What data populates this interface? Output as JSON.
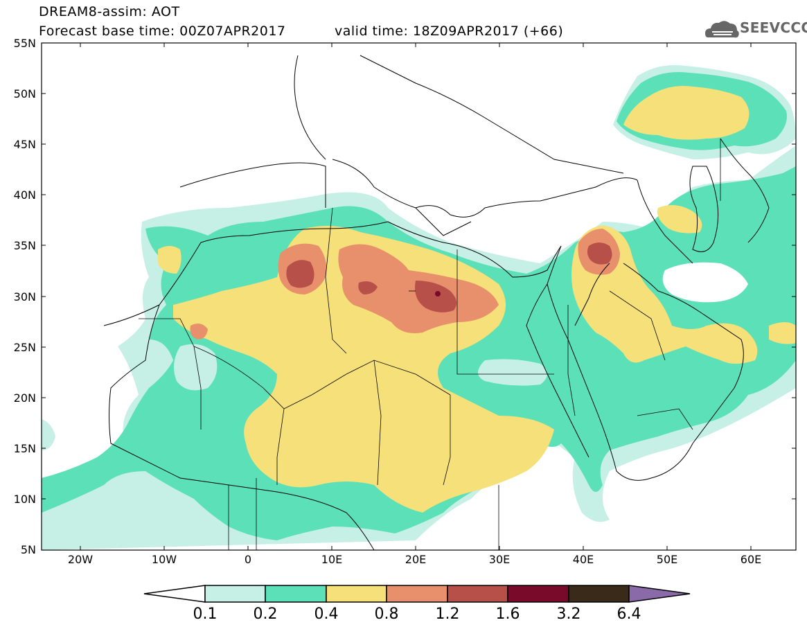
{
  "header": {
    "title": "DREAM8-assim: AOT",
    "base_time": "Forecast base time: 00Z07APR2017",
    "valid_time": "valid time: 18Z09APR2017 (+66)",
    "logo_text": "SEEVCCC",
    "logo_icon": "cloud-logo-icon"
  },
  "axes": {
    "lat_labels": [
      "55N",
      "50N",
      "45N",
      "40N",
      "35N",
      "30N",
      "25N",
      "20N",
      "15N",
      "10N",
      "5N"
    ],
    "lon_labels": [
      "20W",
      "10W",
      "0",
      "10E",
      "20E",
      "30E",
      "40E",
      "50E",
      "60E"
    ]
  },
  "legend": {
    "thresholds": [
      "0.1",
      "0.2",
      "0.4",
      "0.8",
      "1.2",
      "1.6",
      "3.2",
      "6.4"
    ],
    "colors": [
      "#ffffff",
      "#c6f0e6",
      "#5ce0b8",
      "#f5e07a",
      "#e8906c",
      "#b8504a",
      "#7a0a2a",
      "#3a2a1a",
      "#8a6aa8"
    ]
  },
  "map": {
    "field": "AOT",
    "colors": {
      "lightcyan": "#c6f0e6",
      "teal": "#5ce0b8",
      "yellow": "#f5e07a",
      "salmon": "#e8906c",
      "brown": "#b8504a",
      "darkred": "#7a0a2a",
      "coast": "#000000"
    }
  }
}
